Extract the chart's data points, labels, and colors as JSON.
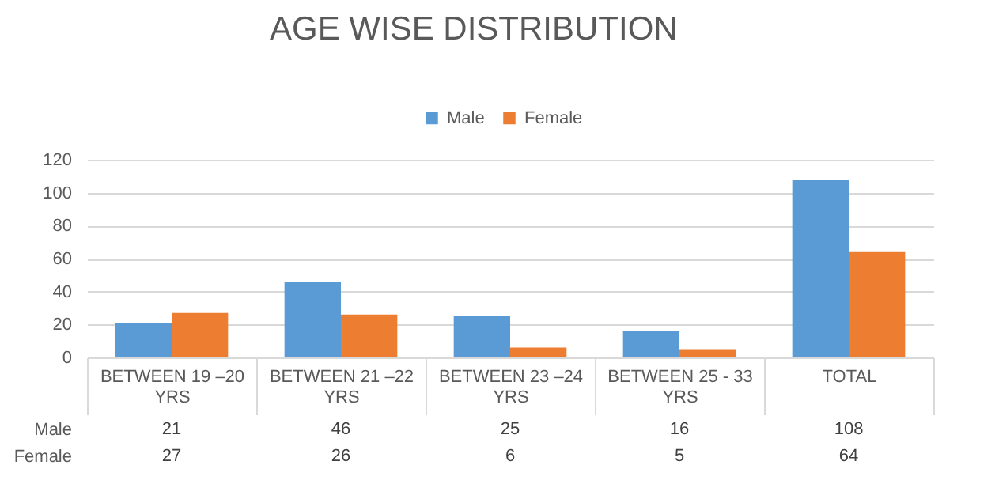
{
  "chart_data": {
    "type": "bar",
    "title": "AGE WISE DISTRIBUTION",
    "categories": [
      "BETWEEN 19 –20 YRS",
      "BETWEEN 21 –22 YRS",
      "BETWEEN 23 –24 YRS",
      "BETWEEN 25 - 33 YRS",
      "TOTAL"
    ],
    "series": [
      {
        "name": "Male",
        "color": "#5b9bd5",
        "values": [
          21,
          46,
          25,
          16,
          108
        ]
      },
      {
        "name": "Female",
        "color": "#ed7d31",
        "values": [
          27,
          26,
          6,
          5,
          64
        ]
      }
    ],
    "ylim": [
      0,
      120
    ],
    "yticks": [
      0,
      20,
      40,
      60,
      80,
      100,
      120
    ],
    "grid": true,
    "legend": "top",
    "data_labels": true
  }
}
